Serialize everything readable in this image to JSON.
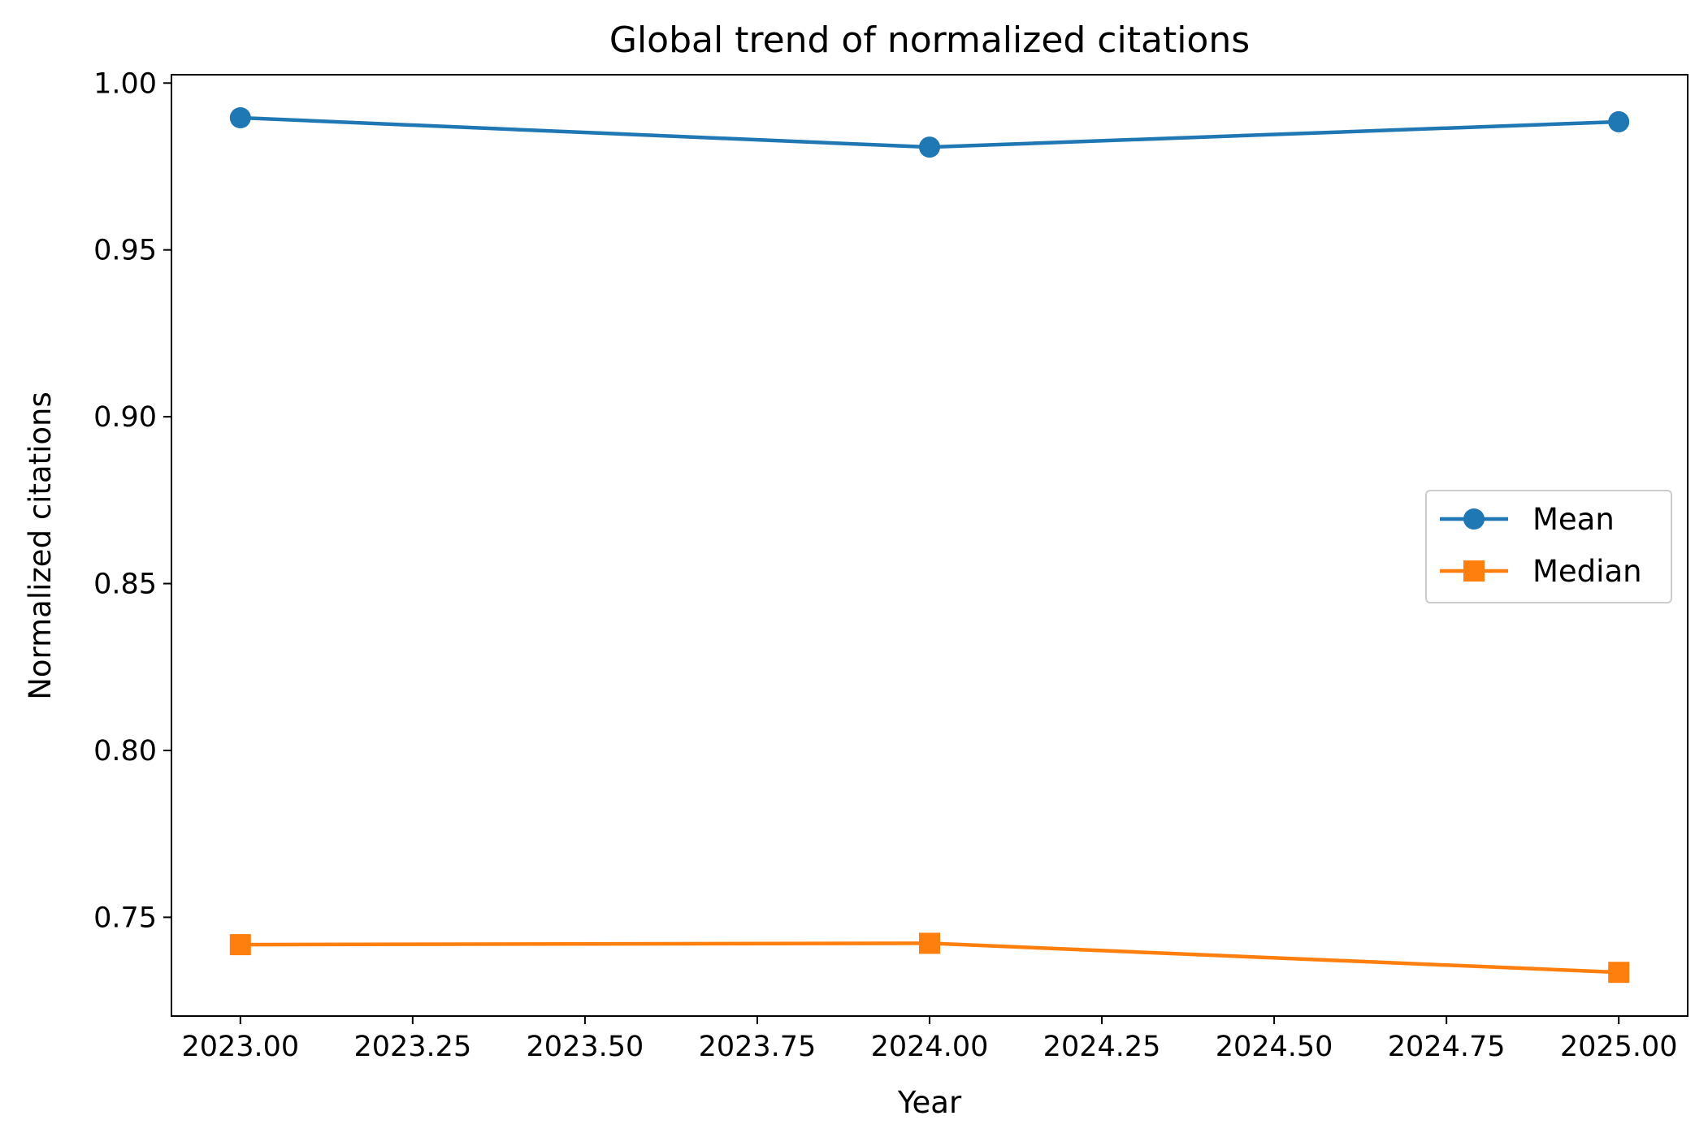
{
  "chart_data": {
    "type": "line",
    "title": "Global trend of normalized citations",
    "xlabel": "Year",
    "ylabel": "Normalized citations",
    "xlim": [
      2022.9,
      2025.1
    ],
    "ylim": [
      0.7204,
      1.0025
    ],
    "x": [
      2023,
      2024,
      2025
    ],
    "xticks": [
      2023.0,
      2023.25,
      2023.5,
      2023.75,
      2024.0,
      2024.25,
      2024.5,
      2024.75,
      2025.0
    ],
    "xtick_labels": [
      "2023.00",
      "2023.25",
      "2023.50",
      "2023.75",
      "2024.00",
      "2024.25",
      "2024.50",
      "2024.75",
      "2025.00"
    ],
    "yticks": [
      0.75,
      0.8,
      0.85,
      0.9,
      0.95,
      1.0
    ],
    "ytick_labels": [
      "0.75",
      "0.80",
      "0.85",
      "0.90",
      "0.95",
      "1.00"
    ],
    "grid": false,
    "legend_position": "center-right",
    "series": [
      {
        "name": "Mean",
        "values": [
          0.9896,
          0.9808,
          0.9884
        ],
        "color": "#1f77b4",
        "marker": "circle"
      },
      {
        "name": "Median",
        "values": [
          0.7418,
          0.7422,
          0.7335
        ],
        "color": "#ff7f0e",
        "marker": "square"
      }
    ]
  }
}
